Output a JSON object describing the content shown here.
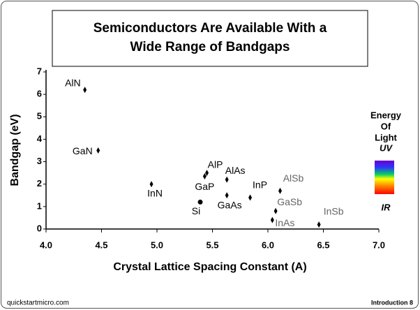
{
  "chart_data": {
    "type": "scatter",
    "title": [
      "Semiconductors Are Available With a",
      "Wide Range of Bandgaps"
    ],
    "x_label": "Crystal Lattice Spacing Constant (A)",
    "y_label": "Bandgap (eV)",
    "names": [
      "AlN",
      "GaN",
      "InN",
      "Si",
      "GaP",
      "AlP",
      "AlAs",
      "GaAs",
      "InP",
      "AlSb",
      "GaSb",
      "InAs",
      "InSb"
    ],
    "x": [
      4.35,
      4.47,
      4.95,
      5.39,
      5.43,
      5.45,
      5.63,
      5.63,
      5.84,
      6.11,
      6.07,
      6.04,
      6.46
    ],
    "values": [
      6.2,
      3.5,
      2.0,
      1.2,
      2.35,
      2.5,
      2.2,
      1.5,
      1.4,
      1.7,
      0.8,
      0.4,
      0.2
    ],
    "markers": [
      "diamond",
      "diamond",
      "diamond",
      "circle",
      "diamond",
      "diamond",
      "diamond",
      "diamond",
      "diamond",
      "diamond",
      "diamond",
      "diamond",
      "diamond"
    ],
    "label_colors": [
      "#000000",
      "#000000",
      "#000000",
      "#000000",
      "#000000",
      "#000000",
      "#000000",
      "#000000",
      "#000000",
      "#666666",
      "#666666",
      "#666666",
      "#666666"
    ],
    "color": "#000000",
    "xlim": [
      4.0,
      7.0
    ],
    "xticks": [
      {
        "value": 4.0,
        "label": "4.0"
      },
      4.5,
      {
        "value": 5.0,
        "label": "5.0"
      },
      5.5,
      {
        "value": 6.0,
        "label": "6.0"
      },
      6.5,
      {
        "value": 7.0,
        "label": "7.0"
      }
    ],
    "ylim": [
      0,
      7
    ],
    "yticks": [
      0,
      1,
      2,
      3,
      4,
      5,
      6,
      7
    ],
    "grid": false,
    "side_panel": {
      "heading": [
        "Energy",
        "Of",
        "Light"
      ],
      "top": "UV",
      "bottom": "IR"
    }
  },
  "footer": {
    "left": "quickstartmicro.com",
    "right": "Introduction 8"
  }
}
